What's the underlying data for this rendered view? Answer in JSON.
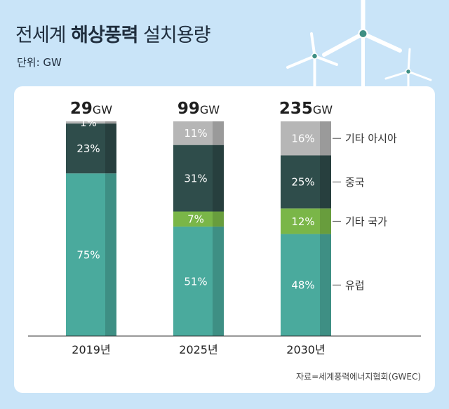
{
  "title": {
    "pre": "전세계 ",
    "bold": "해상풍력",
    "post": " 설치용량"
  },
  "unit_label": "단위: GW",
  "source": "자료=세계풍력에너지협회(GWEC)",
  "chart_data": {
    "type": "bar",
    "stacked": true,
    "normalized_percent": true,
    "categories": [
      "2019년",
      "2025년",
      "2030년"
    ],
    "totals": [
      {
        "value": "29",
        "unit": "GW"
      },
      {
        "value": "99",
        "unit": "GW"
      },
      {
        "value": "235",
        "unit": "GW"
      }
    ],
    "series": [
      {
        "name": "유럽",
        "values": [
          75,
          51,
          48
        ],
        "labels": [
          "75%",
          "51%",
          "48%"
        ],
        "color": "#4aaa9d",
        "shade": "#3e8f84"
      },
      {
        "name": "기타 국가",
        "values": [
          0,
          7,
          12
        ],
        "labels": [
          "",
          "7%",
          "12%"
        ],
        "color": "#7ab648",
        "shade": "#689d3d"
      },
      {
        "name": "중국",
        "values": [
          23,
          31,
          25
        ],
        "labels": [
          "23%",
          "31%",
          "25%"
        ],
        "color": "#2f4d4b",
        "shade": "#273f3e"
      },
      {
        "name": "기타 아시아",
        "values": [
          1,
          11,
          16
        ],
        "labels": [
          "1%",
          "11%",
          "16%"
        ],
        "color": "#b6b6b6",
        "shade": "#9a9a9a"
      }
    ],
    "legend_placement": "right",
    "grid": false
  }
}
